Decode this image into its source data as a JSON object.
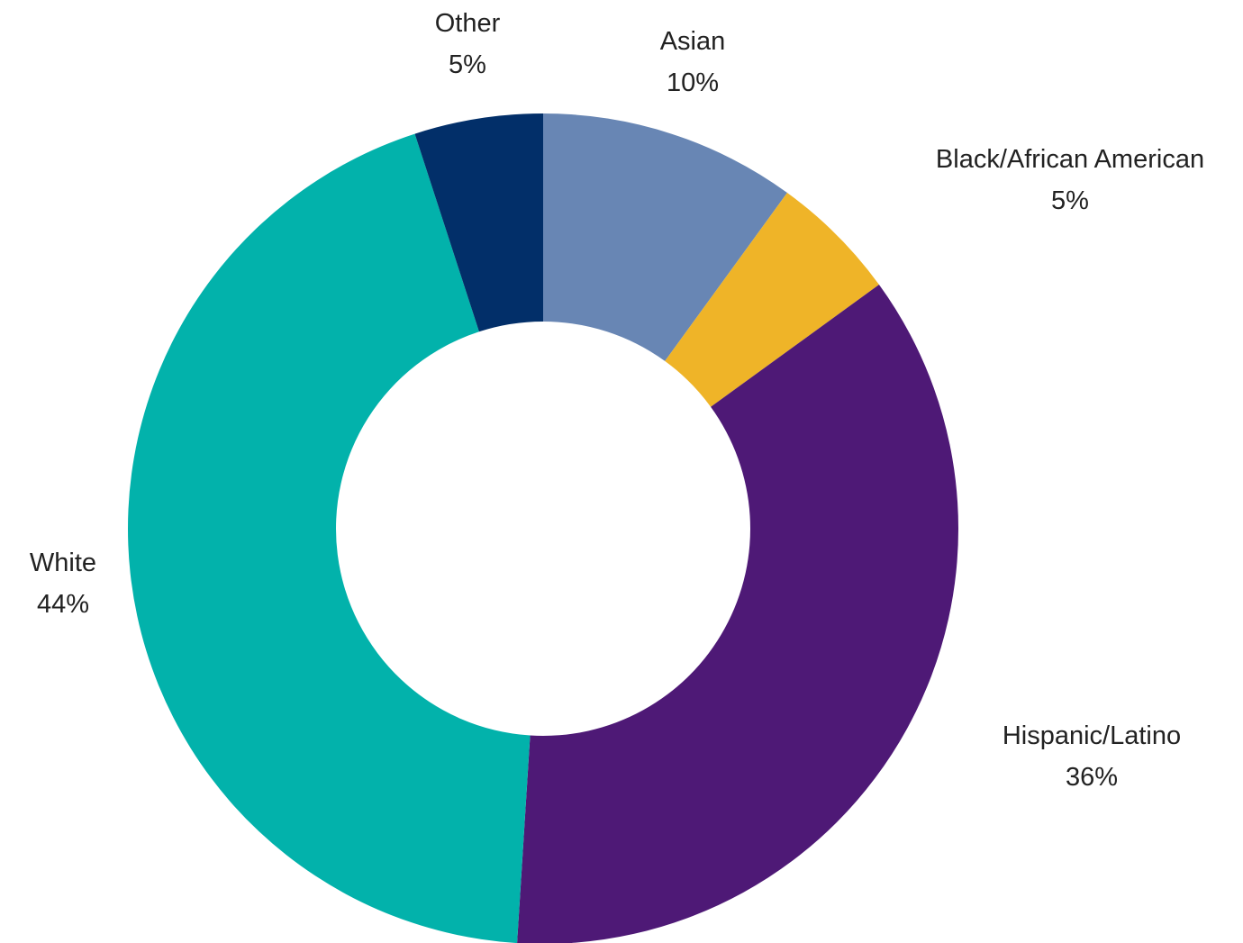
{
  "chart_data": {
    "type": "donut",
    "title": "",
    "start": "12 o'clock, clockwise",
    "series": [
      {
        "name": "Asian",
        "value": 10,
        "label": "10%",
        "color": "#6886b4"
      },
      {
        "name": "Black/African American",
        "value": 5,
        "label": "5%",
        "color": "#efb428"
      },
      {
        "name": "Hispanic/Latino",
        "value": 36,
        "label": "36%",
        "color": "#4e1976"
      },
      {
        "name": "White",
        "value": 44,
        "label": "44%",
        "color": "#02b2ab"
      },
      {
        "name": "Other",
        "value": 5,
        "label": "5%",
        "color": "#022f69"
      }
    ]
  }
}
